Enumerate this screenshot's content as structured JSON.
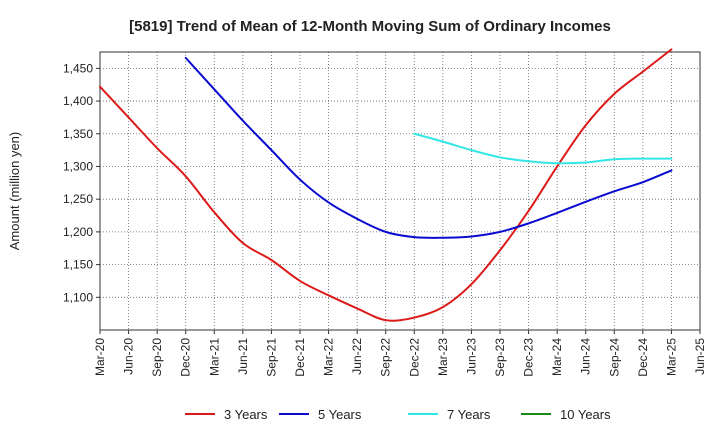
{
  "chart_data": {
    "type": "line",
    "title": "[5819]  Trend of Mean of 12-Month Moving Sum of Ordinary Incomes",
    "xlabel": "",
    "ylabel": "Amount (million yen)",
    "ylim": [
      1050,
      1475
    ],
    "yticks": [
      1100,
      1150,
      1200,
      1250,
      1300,
      1350,
      1400,
      1450
    ],
    "ytick_labels": [
      "1,100",
      "1,150",
      "1,200",
      "1,250",
      "1,300",
      "1,350",
      "1,400",
      "1,450"
    ],
    "categories": [
      "Mar-20",
      "Jun-20",
      "Sep-20",
      "Dec-20",
      "Mar-21",
      "Jun-21",
      "Sep-21",
      "Dec-21",
      "Mar-22",
      "Jun-22",
      "Sep-22",
      "Dec-22",
      "Mar-23",
      "Jun-23",
      "Sep-23",
      "Dec-23",
      "Mar-24",
      "Jun-24",
      "Sep-24",
      "Dec-24",
      "Mar-25",
      "Jun-25"
    ],
    "grid": true,
    "legend_position": "bottom",
    "series": [
      {
        "name": "3 Years",
        "color": "#dd1a1a",
        "values": [
          1422,
          1375,
          1328,
          1285,
          1230,
          1183,
          1157,
          1125,
          1103,
          1083,
          1065,
          1069,
          1085,
          1120,
          1172,
          1232,
          1300,
          1363,
          1411,
          1445,
          1479,
          null
        ]
      },
      {
        "name": "5 Years",
        "color": "#0a0ad0",
        "values": [
          null,
          null,
          null,
          1466,
          1418,
          1370,
          1325,
          1280,
          1245,
          1220,
          1200,
          1192,
          1191,
          1193,
          1200,
          1213,
          1229,
          1246,
          1262,
          1276,
          1294,
          null
        ]
      },
      {
        "name": "7 Years",
        "color": "#33e6e6",
        "values": [
          null,
          null,
          null,
          null,
          null,
          null,
          null,
          null,
          null,
          null,
          null,
          1350,
          1338,
          1325,
          1314,
          1308,
          1305,
          1306,
          1311,
          1312,
          1312,
          null
        ]
      },
      {
        "name": "10 Years",
        "color": "#1a8c1a",
        "values": [
          null,
          null,
          null,
          null,
          null,
          null,
          null,
          null,
          null,
          null,
          null,
          null,
          null,
          null,
          null,
          null,
          null,
          null,
          null,
          null,
          null,
          null
        ]
      }
    ]
  }
}
